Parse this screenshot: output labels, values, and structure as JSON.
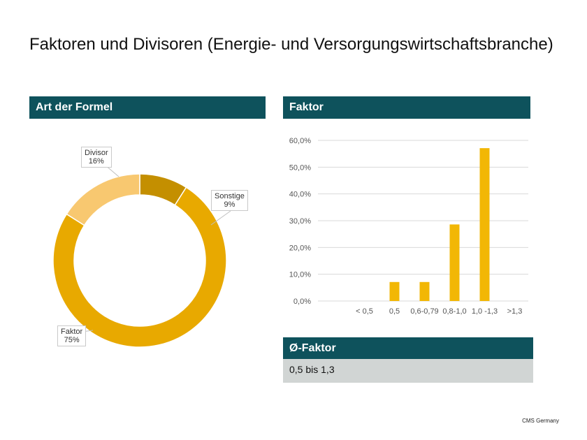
{
  "page": {
    "title": "Faktoren und Divisoren (Energie- und Versorgungswirtschaftsbranche)",
    "footer": "CMS Germany"
  },
  "panels": {
    "formula_header": "Art der Formel",
    "factor_header": "Faktor",
    "avg_header": "Ø-Faktor",
    "avg_value": "0,5 bis 1,3"
  },
  "chart_data": [
    {
      "type": "pie",
      "title": "Art der Formel",
      "donut": true,
      "categories": [
        "Sonstige",
        "Faktor",
        "Divisor"
      ],
      "values": [
        9,
        75,
        16
      ],
      "labels": [
        "9%",
        "75%",
        "16%"
      ],
      "colors": [
        "#c48f00",
        "#e8a900",
        "#f8c870"
      ]
    },
    {
      "type": "bar",
      "title": "Faktor",
      "categories": [
        "< 0,5",
        "0,5",
        "0,6-0,79",
        "0,8-1,0",
        "1,0 -1,3",
        ">1,3"
      ],
      "values": [
        0,
        7.1,
        7.1,
        28.6,
        57.1,
        0
      ],
      "ylim": [
        0,
        60
      ],
      "yticks": [
        "0,0%",
        "10,0%",
        "20,0%",
        "30,0%",
        "40,0%",
        "50,0%",
        "60,0%"
      ],
      "color": "#f2b705",
      "xlabel": "",
      "ylabel": "",
      "grid": true
    }
  ]
}
